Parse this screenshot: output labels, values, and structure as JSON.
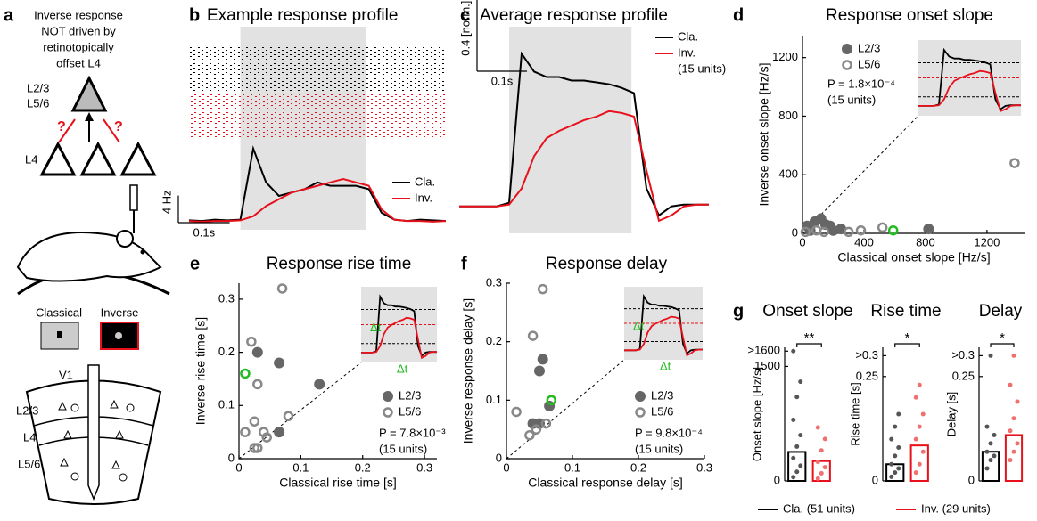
{
  "diagram": {
    "label": "a",
    "caption": [
      "Inverse response",
      "NOT driven by",
      "retinotopically",
      "offset L4"
    ],
    "layers_top": [
      "L2/3",
      "L5/6"
    ],
    "question_marks": [
      "?",
      "?"
    ],
    "l4": "L4",
    "stimuli": [
      "Classical",
      "Inverse"
    ],
    "cortex": {
      "area": "V1",
      "layers": [
        "L2/3",
        "L4",
        "L5/6"
      ]
    }
  },
  "chart_data": [
    {
      "type": "line",
      "panel": "b",
      "title": "Example response profile",
      "raster": true,
      "x": [
        0,
        0.025,
        0.05,
        0.075,
        0.1,
        0.125,
        0.15,
        0.175,
        0.2,
        0.225,
        0.25,
        0.275,
        0.3,
        0.325,
        0.35,
        0.375,
        0.4,
        0.425,
        0.45,
        0.475,
        0.5
      ],
      "xlim": [
        0,
        0.5
      ],
      "ylim": [
        -1,
        29
      ],
      "stimulus": [
        0.1,
        0.345
      ],
      "scale_bars": [
        {
          "axis": "y",
          "value": 4,
          "label": "4 Hz"
        },
        {
          "axis": "x",
          "value": 0.1,
          "label": "0.1s"
        }
      ],
      "series": [
        {
          "name": "Cla.",
          "color": "#000000",
          "values": [
            0.4,
            0.3,
            0.5,
            0.4,
            0.5,
            11,
            6,
            4,
            4.5,
            5,
            6,
            5.5,
            5.5,
            5.5,
            5,
            1.5,
            0.5,
            0.3,
            0.5,
            0.4,
            0.3
          ]
        },
        {
          "name": "Inv.",
          "color": "#e8101a",
          "values": [
            0.3,
            0.2,
            0.3,
            0.3,
            0.4,
            1,
            2.5,
            3.5,
            4.5,
            5,
            5.5,
            6,
            6.5,
            6,
            5.5,
            2,
            0.5,
            0.3,
            0.3,
            0.2,
            0.3
          ]
        }
      ]
    },
    {
      "type": "line",
      "panel": "c",
      "title": "Average response profile",
      "legend_note": "(15 units)",
      "x": [
        0,
        0.025,
        0.05,
        0.075,
        0.1,
        0.125,
        0.15,
        0.175,
        0.2,
        0.225,
        0.25,
        0.275,
        0.3,
        0.325,
        0.35,
        0.375,
        0.4,
        0.425,
        0.45,
        0.475,
        0.5
      ],
      "xlim": [
        0,
        0.5
      ],
      "ylim": [
        -0.15,
        1.0
      ],
      "stimulus": [
        0.1,
        0.345
      ],
      "scale_bars": [
        {
          "axis": "y",
          "value": 0.4,
          "label": "0.4 [norm.]"
        },
        {
          "axis": "x",
          "value": 0.1,
          "label": "0.1s"
        }
      ],
      "series": [
        {
          "name": "Cla.",
          "color": "#000000",
          "values": [
            0,
            0,
            0,
            0,
            0.02,
            0.85,
            0.75,
            0.72,
            0.72,
            0.7,
            0.7,
            0.69,
            0.68,
            0.66,
            0.63,
            0.1,
            -0.05,
            0,
            0.01,
            0.01,
            0.01
          ]
        },
        {
          "name": "Inv.",
          "color": "#e8101a",
          "values": [
            0,
            0,
            0,
            0,
            0.01,
            0.1,
            0.28,
            0.38,
            0.42,
            0.45,
            0.48,
            0.5,
            0.53,
            0.52,
            0.5,
            0.2,
            -0.08,
            -0.05,
            0,
            0.01,
            0.01
          ]
        }
      ]
    },
    {
      "type": "scatter",
      "panel": "d",
      "title": "Response onset slope",
      "xlabel": "Classical onset slope [Hz/s]",
      "ylabel": "Inverse onset slope [Hz/s]",
      "xlim": [
        0,
        1450
      ],
      "ylim": [
        0,
        1350
      ],
      "xticks": [
        0,
        400,
        800,
        1200
      ],
      "yticks": [
        0,
        400,
        800,
        1200
      ],
      "annotations": [
        "P = 1.8×10⁻⁴",
        "(15 units)"
      ],
      "highlight": {
        "x": 590,
        "y": 20,
        "color": "#22bb22"
      },
      "series": [
        {
          "name": "L2/3",
          "color": "#666666",
          "marker": "filled",
          "x": [
            30,
            80,
            120,
            150,
            200,
            250,
            820,
            50,
            180
          ],
          "y": [
            50,
            80,
            100,
            60,
            20,
            30,
            30,
            20,
            50
          ]
        },
        {
          "name": "L5/6",
          "color": "#888888",
          "marker": "open",
          "x": [
            20,
            90,
            140,
            300,
            380,
            520,
            1380
          ],
          "y": [
            10,
            20,
            10,
            10,
            20,
            40,
            480
          ]
        }
      ]
    },
    {
      "type": "scatter",
      "panel": "e",
      "title": "Response rise time",
      "xlabel": "Classical rise time [s]",
      "ylabel": "Inverse rise time [s]",
      "xlim": [
        0,
        0.32
      ],
      "ylim": [
        0,
        0.33
      ],
      "xticks": [
        0,
        0.1,
        0.2,
        0.3
      ],
      "yticks": [
        0,
        0.1,
        0.2,
        0.3
      ],
      "annotations": [
        "P = 7.8×10⁻³",
        "(15 units)"
      ],
      "inset_labels": [
        "Δt",
        "Δt"
      ],
      "highlight": {
        "x": 0.01,
        "y": 0.16,
        "color": "#22bb22"
      },
      "series": [
        {
          "name": "L2/3",
          "color": "#666666",
          "marker": "filled",
          "x": [
            0.03,
            0.065,
            0.13,
            0.065
          ],
          "y": [
            0.2,
            0.18,
            0.14,
            0.05
          ]
        },
        {
          "name": "L5/6",
          "color": "#888888",
          "marker": "open",
          "x": [
            0.07,
            0.02,
            0.03,
            0.01,
            0.025,
            0.04,
            0.045,
            0.025,
            0.03,
            0.08
          ],
          "y": [
            0.32,
            0.22,
            0.14,
            0.05,
            0.07,
            0.05,
            0.04,
            0.02,
            0.02,
            0.08
          ]
        }
      ]
    },
    {
      "type": "scatter",
      "panel": "f",
      "title": "Response delay",
      "xlabel": "Classical response delay [s]",
      "ylabel": "Inverse response delay [s]",
      "xlim": [
        0,
        0.3
      ],
      "ylim": [
        0,
        0.3
      ],
      "xticks": [
        0,
        0.1,
        0.2,
        0.3
      ],
      "yticks": [
        0,
        0.1,
        0.2,
        0.3
      ],
      "annotations": [
        "P = 9.8×10⁻⁴",
        "(15 units)"
      ],
      "inset_labels": [
        "Δt",
        "Δt"
      ],
      "highlight": {
        "x": 0.068,
        "y": 0.1,
        "color": "#22bb22"
      },
      "series": [
        {
          "name": "L2/3",
          "color": "#666666",
          "marker": "filled",
          "x": [
            0.05,
            0.055,
            0.065,
            0.05,
            0.04
          ],
          "y": [
            0.15,
            0.17,
            0.09,
            0.06,
            0.06
          ]
        },
        {
          "name": "L5/6",
          "color": "#888888",
          "marker": "open",
          "x": [
            0.055,
            0.04,
            0.015,
            0.035,
            0.06,
            0.045
          ],
          "y": [
            0.29,
            0.21,
            0.08,
            0.04,
            0.06,
            0.05
          ]
        }
      ]
    },
    {
      "type": "bar",
      "panel": "g",
      "title": "Onset slope",
      "ylabel": "Onset slope [Hz/s]",
      "ylim": [
        0,
        1750
      ],
      "yticks": [
        0,
        1500,
        {
          "value": 1700,
          "label": ">1600"
        }
      ],
      "significance": "**",
      "series": [
        {
          "name": "Cla. (51 units)",
          "color": "#000000",
          "values": [
            380
          ],
          "points": [
            50,
            120,
            200,
            300,
            450,
            600,
            800,
            1100,
            1300,
            1700
          ]
        },
        {
          "name": "Inv. (29 units)",
          "color": "#e8101a",
          "values": [
            260
          ],
          "points": [
            30,
            100,
            180,
            250,
            400,
            550,
            700
          ]
        }
      ]
    },
    {
      "type": "bar",
      "title": "Rise time",
      "ylabel": "Rise time [s]",
      "ylim": [
        0,
        0.32
      ],
      "yticks": [
        0,
        0.25,
        {
          "value": 0.3,
          "label": ">0.3"
        }
      ],
      "significance": "*",
      "series": [
        {
          "color": "#000000",
          "values": [
            0.04
          ],
          "points": [
            0.01,
            0.02,
            0.03,
            0.04,
            0.06,
            0.08,
            0.1,
            0.13,
            0.16
          ]
        },
        {
          "color": "#e8101a",
          "values": [
            0.085
          ],
          "points": [
            0.02,
            0.04,
            0.07,
            0.1,
            0.13,
            0.16,
            0.2,
            0.23
          ]
        }
      ]
    },
    {
      "type": "bar",
      "title": "Delay",
      "ylabel": "Delay [s]",
      "ylim": [
        0,
        0.32
      ],
      "yticks": [
        0,
        0.25,
        {
          "value": 0.3,
          "label": ">0.3"
        }
      ],
      "significance": "*",
      "series": [
        {
          "color": "#000000",
          "values": [
            0.07
          ],
          "points": [
            0.03,
            0.05,
            0.06,
            0.07,
            0.09,
            0.11,
            0.13,
            0.3
          ]
        },
        {
          "color": "#e8101a",
          "values": [
            0.11
          ],
          "points": [
            0.05,
            0.07,
            0.09,
            0.12,
            0.15,
            0.19,
            0.23,
            0.3
          ]
        }
      ]
    }
  ]
}
